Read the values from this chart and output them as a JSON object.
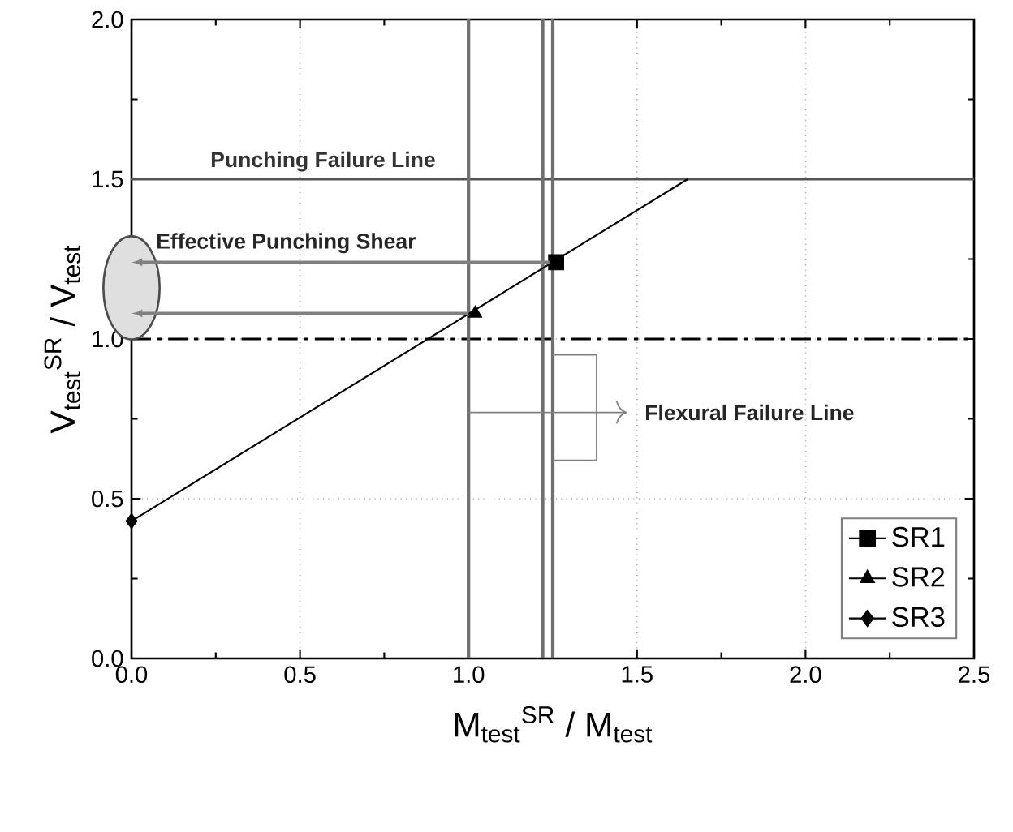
{
  "chart_data": {
    "type": "scatter",
    "xlabel": "M$_{test}$$^{SR}$ / M$_{test}$",
    "ylabel": "V$_{test}$$^{SR}$ / V$_{test}$",
    "xlim": [
      0,
      2.5
    ],
    "ylim": [
      0,
      2.0
    ],
    "xticks": [
      {
        "value": 0,
        "label": "0.0"
      },
      {
        "value": 0.5,
        "label": "0.5"
      },
      {
        "value": 1.0,
        "label": "1.0"
      },
      {
        "value": 1.5,
        "label": "1.5"
      },
      {
        "value": 2.0,
        "label": "2.0"
      },
      {
        "value": 2.5,
        "label": "2.5"
      }
    ],
    "yticks": [
      {
        "value": 0,
        "label": "0.0"
      },
      {
        "value": 0.5,
        "label": "0.5"
      },
      {
        "value": 1.0,
        "label": "1.0"
      },
      {
        "value": 1.5,
        "label": "1.5"
      },
      {
        "value": 2.0,
        "label": "2.0"
      }
    ],
    "grid": true,
    "legend": "bottom right",
    "series": [
      {
        "name": "SR1",
        "color": "#000000",
        "marker": "square",
        "x": [
          1.26
        ],
        "values": [
          1.24
        ]
      },
      {
        "name": "SR2",
        "color": "#000000",
        "marker": "triangle",
        "x": [
          1.02
        ],
        "values": [
          1.08
        ]
      },
      {
        "name": "SR3",
        "color": "#000000",
        "marker": "diamond",
        "x": [
          0.0
        ],
        "values": [
          0.43
        ]
      },
      {
        "type": "line",
        "color": "#000000",
        "marker": "none",
        "x": [
          0.0,
          1.65
        ],
        "values": [
          0.43,
          1.5
        ]
      }
    ],
    "ref_lines": [
      {
        "axis": "y",
        "value": 1.5,
        "label": "Punching Failure Line",
        "color": "#555555",
        "line_style": "solid"
      },
      {
        "axis": "y",
        "value": 1.0,
        "color": "#000000",
        "line_style": "dashdot"
      },
      {
        "axis": "x",
        "value": 1.0,
        "color": "#707070",
        "line_style": "solid"
      },
      {
        "axis": "x",
        "value": 1.22,
        "color": "#707070",
        "line_style": "solid"
      },
      {
        "axis": "x",
        "value": 1.25,
        "color": "#707070",
        "line_style": "solid"
      }
    ],
    "annotations": [
      "Effective Punching Shear",
      {
        "text": "Flexural Failure Line",
        "x": 1.0,
        "y": 0.77
      }
    ]
  }
}
